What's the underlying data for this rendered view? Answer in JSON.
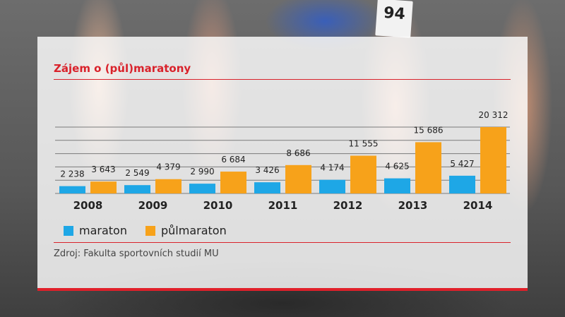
{
  "bib_number": "94",
  "chart_data": {
    "type": "bar",
    "title": "Zájem o (půl)maratony",
    "categories": [
      "2008",
      "2009",
      "2010",
      "2011",
      "2012",
      "2013",
      "2014"
    ],
    "series": [
      {
        "name": "maraton",
        "color": "#1ea7e6",
        "values": [
          2238,
          2549,
          2990,
          3426,
          4174,
          4625,
          5427
        ],
        "labels": [
          "2 238",
          "2 549",
          "2 990",
          "3 426",
          "4 174",
          "4 625",
          "5 427"
        ]
      },
      {
        "name": "půlmaraton",
        "color": "#f7a21a",
        "values": [
          3643,
          4379,
          6684,
          8686,
          11555,
          15686,
          20312
        ],
        "labels": [
          "3 643",
          "4 379",
          "6 684",
          "8 686",
          "11 555",
          "15 686",
          "20 312"
        ]
      }
    ],
    "ylim": [
      0,
      21000
    ],
    "grid": true,
    "legend_position": "bottom-left"
  },
  "source": "Zdroj: Fakulta sportovních studií MU",
  "colors": {
    "accent": "#d9222b",
    "gridline": "#7a7a7a"
  }
}
